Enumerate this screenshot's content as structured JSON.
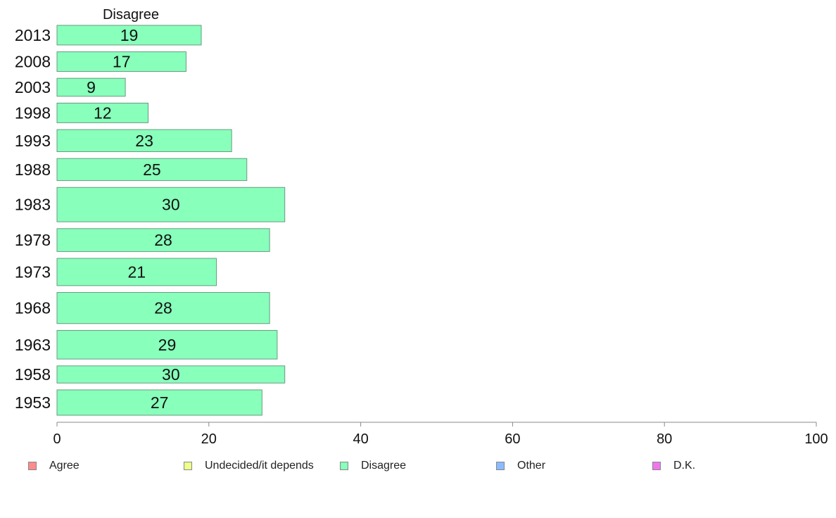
{
  "chart_data": {
    "type": "bar",
    "orientation": "horizontal",
    "panel_title": "Disagree",
    "categories": [
      "2013",
      "2008",
      "2003",
      "1998",
      "1993",
      "1988",
      "1983",
      "1978",
      "1973",
      "1968",
      "1963",
      "1958",
      "1953"
    ],
    "values": [
      19,
      17,
      9,
      12,
      23,
      25,
      30,
      28,
      21,
      28,
      29,
      30,
      27
    ],
    "data_labels": [
      "19",
      "17",
      "9",
      "12",
      "23",
      "25",
      "30",
      "28",
      "21",
      "28",
      "29",
      "30",
      "27"
    ],
    "bar_widths_relative": [
      0.72,
      0.72,
      0.66,
      0.72,
      0.81,
      0.81,
      1.26,
      0.84,
      1.0,
      1.14,
      1.05,
      0.63,
      0.93
    ],
    "xlim": [
      0,
      100
    ],
    "x_ticks": [
      "0",
      "20",
      "40",
      "60",
      "80",
      "100"
    ],
    "bar_color": "#88ffbb",
    "bar_edge_color": "#6a9a80",
    "grid": false
  },
  "legend": {
    "items": [
      {
        "label": "Agree",
        "color": "#ff8c8c"
      },
      {
        "label": "Undecided/it depends",
        "color": "#eeff8c"
      },
      {
        "label": "Disagree",
        "color": "#88ffbb"
      },
      {
        "label": "Other",
        "color": "#8cbbff"
      },
      {
        "label": "D.K.",
        "color": "#ee77ee"
      }
    ]
  }
}
